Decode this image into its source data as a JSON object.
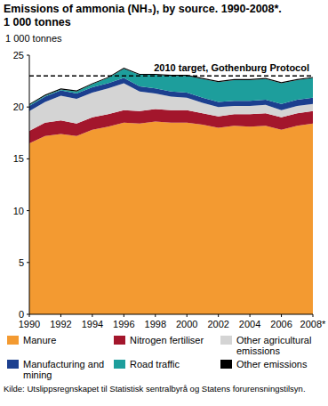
{
  "chart_data": {
    "type": "area",
    "stacked": true,
    "title": "Emissions of ammonia (NH₃), by source. 1990-2008*.",
    "subtitle": "1 000 tonnes",
    "y_label": "1 000 tonnes",
    "source": "Kilde: Utslippsregnskapet til Statistisk sentralbyrå og Statens forurensningstilsyn.",
    "categories": [
      "1990",
      null,
      "1992",
      null,
      "1994",
      null,
      "1996",
      null,
      "1998",
      null,
      "2000",
      null,
      "2002",
      null,
      "2004",
      null,
      "2006",
      null,
      "2008*"
    ],
    "series": [
      {
        "name": "Manure",
        "color": "#f39a31",
        "values": [
          16.5,
          17.2,
          17.4,
          17.2,
          17.8,
          18.1,
          18.5,
          18.4,
          18.6,
          18.5,
          18.5,
          18.3,
          18.0,
          18.2,
          18.1,
          18.2,
          17.8,
          18.2,
          18.4
        ]
      },
      {
        "name": "Nitrogen fertiliser",
        "color": "#a3162c",
        "values": [
          1.2,
          1.3,
          1.3,
          1.2,
          1.2,
          1.2,
          1.2,
          1.2,
          1.2,
          1.2,
          1.2,
          1.1,
          1.1,
          1.1,
          1.2,
          1.2,
          1.2,
          1.2,
          1.2
        ]
      },
      {
        "name": "Other agricultural emissions",
        "color": "#d4d4d4",
        "values": [
          1.9,
          2.0,
          2.4,
          2.4,
          2.4,
          2.5,
          2.6,
          1.9,
          1.5,
          1.3,
          1.2,
          1.0,
          0.9,
          0.8,
          0.8,
          0.8,
          0.7,
          0.7,
          0.7
        ]
      },
      {
        "name": "Manufacturing and mining",
        "color": "#1c3f8f",
        "values": [
          0.5,
          0.5,
          0.5,
          0.5,
          0.5,
          0.5,
          0.5,
          0.5,
          0.5,
          0.5,
          0.5,
          0.5,
          0.5,
          0.5,
          0.5,
          0.5,
          0.6,
          0.6,
          0.6
        ]
      },
      {
        "name": "Road traffic",
        "color": "#1d9e9c",
        "values": [
          0.1,
          0.1,
          0.1,
          0.2,
          0.3,
          0.5,
          0.9,
          1.1,
          1.3,
          1.5,
          1.6,
          1.8,
          1.9,
          2.0,
          2.0,
          2.0,
          2.0,
          1.9,
          1.9
        ]
      },
      {
        "name": "Other emissions",
        "color": "#000000",
        "values": [
          0.1,
          0.1,
          0.1,
          0.1,
          0.1,
          0.1,
          0.1,
          0.1,
          0.1,
          0.1,
          0.1,
          0.1,
          0.1,
          0.1,
          0.1,
          0.1,
          0.1,
          0.1,
          0.1
        ]
      }
    ],
    "annotations": [
      {
        "text": "2010 target, Gothenburg Protocol",
        "y": 23
      }
    ],
    "ylim": [
      0,
      25
    ],
    "yticks": [
      0,
      5,
      10,
      15,
      20,
      25
    ],
    "grid": false,
    "legend": "bottom"
  }
}
